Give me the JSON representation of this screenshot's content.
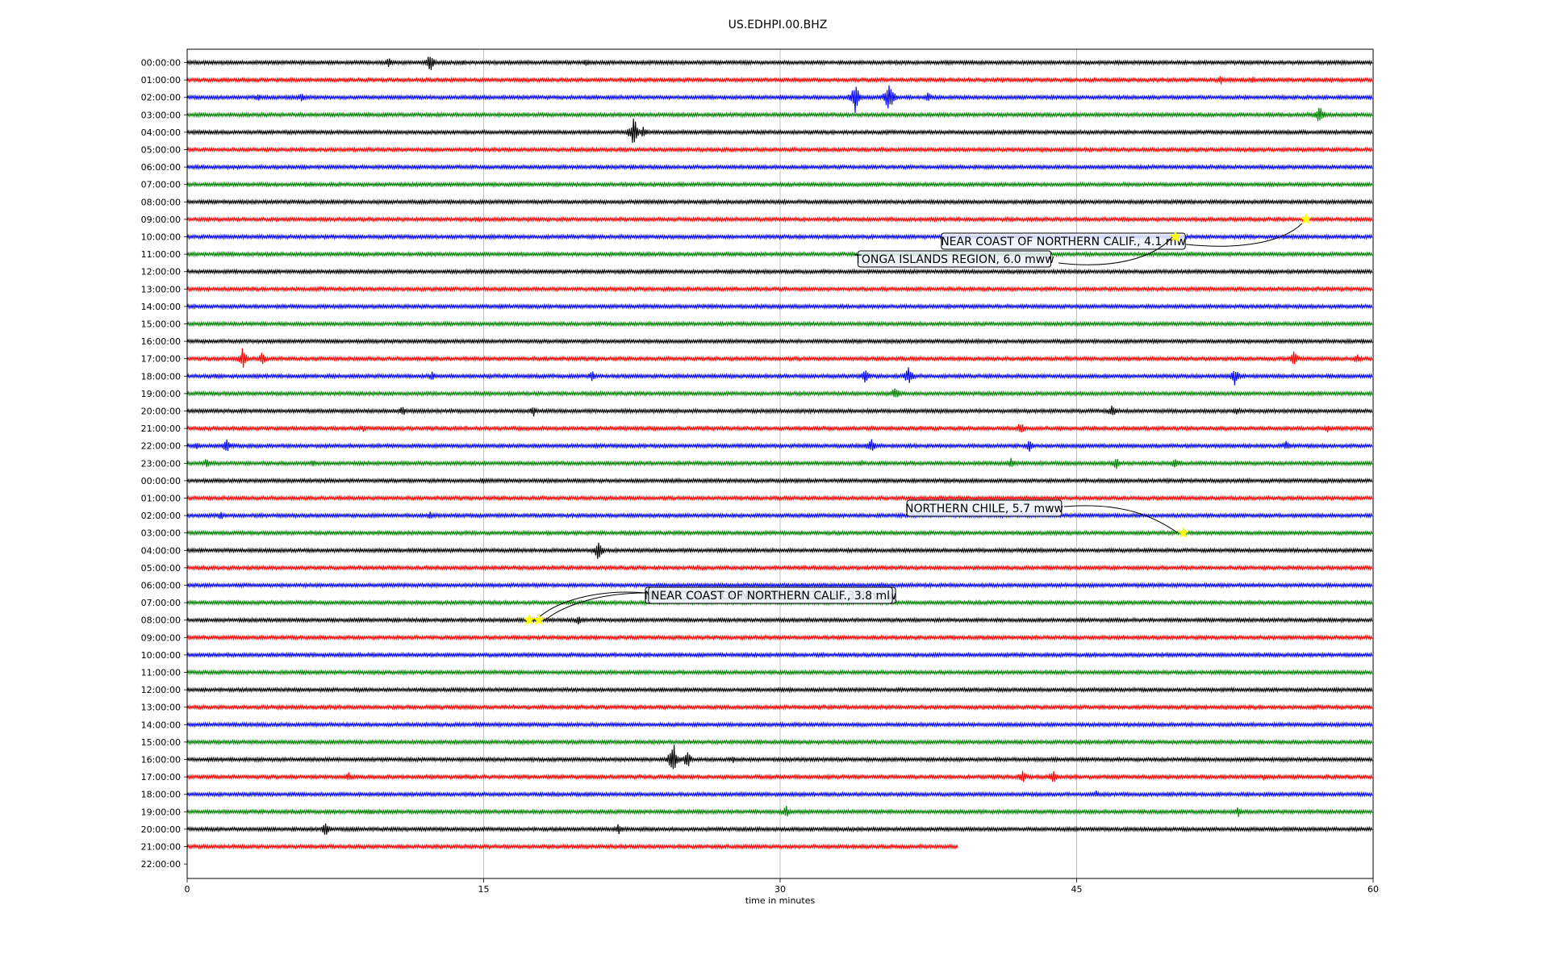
{
  "chart_data": {
    "type": "line",
    "title": "US.EDHPI.00.BHZ",
    "xlabel": "time in minutes",
    "ylabel": "",
    "xlim": [
      0,
      60
    ],
    "xticks": [
      "0",
      "15",
      "30",
      "45",
      "60"
    ],
    "xtick_values": [
      0,
      15,
      30,
      45,
      60
    ],
    "grid": "vertical",
    "trace_colors": [
      "#000000",
      "#ff0000",
      "#0000ff",
      "#008000"
    ],
    "row_labels": [
      "00:00:00",
      "01:00:00",
      "02:00:00",
      "03:00:00",
      "04:00:00",
      "05:00:00",
      "06:00:00",
      "07:00:00",
      "08:00:00",
      "09:00:00",
      "10:00:00",
      "11:00:00",
      "12:00:00",
      "13:00:00",
      "14:00:00",
      "15:00:00",
      "16:00:00",
      "17:00:00",
      "18:00:00",
      "19:00:00",
      "20:00:00",
      "21:00:00",
      "22:00:00",
      "23:00:00",
      "00:00:00",
      "01:00:00",
      "02:00:00",
      "03:00:00",
      "04:00:00",
      "05:00:00",
      "06:00:00",
      "07:00:00",
      "08:00:00",
      "09:00:00",
      "10:00:00",
      "11:00:00",
      "12:00:00",
      "13:00:00",
      "14:00:00",
      "15:00:00",
      "16:00:00",
      "17:00:00",
      "18:00:00",
      "19:00:00",
      "20:00:00",
      "21:00:00",
      "22:00:00"
    ],
    "last_trace_end_min": 39,
    "events": [
      {
        "row": 9,
        "minute": 56.6,
        "label": "NEAR COAST OF NORTHERN CALIF., 4.1 mw"
      },
      {
        "row": 10,
        "minute": 50.0,
        "label": "TONGA ISLANDS REGION, 6.0 mww"
      },
      {
        "row": 27,
        "minute": 50.4,
        "label": "NORTHERN CHILE, 5.7 mww"
      },
      {
        "row": 32,
        "minute": 17.3,
        "label": "NEAR COAST OF NORTHERN CALIF., 3.8 ml"
      },
      {
        "row": 32,
        "minute": 17.8,
        "label": "NEAR COAST OF NORTHERN CALIF., 3.8 mhw"
      }
    ],
    "bursts": [
      {
        "row": 0,
        "minute": 10.2,
        "amp": 6
      },
      {
        "row": 0,
        "minute": 12.3,
        "amp": 12
      },
      {
        "row": 0,
        "minute": 14.0,
        "amp": 5
      },
      {
        "row": 0,
        "minute": 20.2,
        "amp": 5
      },
      {
        "row": 1,
        "minute": 52.3,
        "amp": 6
      },
      {
        "row": 1,
        "minute": 53.9,
        "amp": 5
      },
      {
        "row": 2,
        "minute": 3.6,
        "amp": 5
      },
      {
        "row": 2,
        "minute": 5.8,
        "amp": 6
      },
      {
        "row": 2,
        "minute": 33.8,
        "amp": 20
      },
      {
        "row": 2,
        "minute": 35.5,
        "amp": 22
      },
      {
        "row": 2,
        "minute": 37.5,
        "amp": 7
      },
      {
        "row": 3,
        "minute": 57.3,
        "amp": 14
      },
      {
        "row": 4,
        "minute": 22.6,
        "amp": 20
      },
      {
        "row": 4,
        "minute": 23.1,
        "amp": 8
      },
      {
        "row": 5,
        "minute": 30.6,
        "amp": 3
      },
      {
        "row": 17,
        "minute": 2.8,
        "amp": 14
      },
      {
        "row": 17,
        "minute": 3.8,
        "amp": 10
      },
      {
        "row": 17,
        "minute": 56.0,
        "amp": 10
      },
      {
        "row": 17,
        "minute": 59.2,
        "amp": 8
      },
      {
        "row": 18,
        "minute": 1.5,
        "amp": 5
      },
      {
        "row": 18,
        "minute": 12.4,
        "amp": 6
      },
      {
        "row": 18,
        "minute": 20.5,
        "amp": 7
      },
      {
        "row": 18,
        "minute": 34.3,
        "amp": 10
      },
      {
        "row": 18,
        "minute": 36.5,
        "amp": 12
      },
      {
        "row": 18,
        "minute": 53.0,
        "amp": 12
      },
      {
        "row": 19,
        "minute": 35.8,
        "amp": 10
      },
      {
        "row": 20,
        "minute": 10.9,
        "amp": 7
      },
      {
        "row": 20,
        "minute": 17.5,
        "amp": 8
      },
      {
        "row": 20,
        "minute": 46.8,
        "amp": 9
      },
      {
        "row": 20,
        "minute": 53.1,
        "amp": 6
      },
      {
        "row": 21,
        "minute": 8.9,
        "amp": 5
      },
      {
        "row": 21,
        "minute": 42.2,
        "amp": 10
      },
      {
        "row": 21,
        "minute": 57.7,
        "amp": 6
      },
      {
        "row": 22,
        "minute": 0.5,
        "amp": 6
      },
      {
        "row": 22,
        "minute": 2.0,
        "amp": 10
      },
      {
        "row": 22,
        "minute": 34.6,
        "amp": 10
      },
      {
        "row": 22,
        "minute": 42.6,
        "amp": 8
      },
      {
        "row": 22,
        "minute": 55.6,
        "amp": 7
      },
      {
        "row": 23,
        "minute": 1.0,
        "amp": 7
      },
      {
        "row": 23,
        "minute": 6.4,
        "amp": 5
      },
      {
        "row": 23,
        "minute": 34.1,
        "amp": 5
      },
      {
        "row": 23,
        "minute": 41.7,
        "amp": 8
      },
      {
        "row": 23,
        "minute": 47.0,
        "amp": 8
      },
      {
        "row": 23,
        "minute": 50.0,
        "amp": 8
      },
      {
        "row": 24,
        "minute": 15.0,
        "amp": 5
      },
      {
        "row": 26,
        "minute": 1.7,
        "amp": 6
      },
      {
        "row": 26,
        "minute": 12.3,
        "amp": 5
      },
      {
        "row": 28,
        "minute": 20.8,
        "amp": 14
      },
      {
        "row": 32,
        "minute": 19.8,
        "amp": 7
      },
      {
        "row": 40,
        "minute": 24.6,
        "amp": 22
      },
      {
        "row": 40,
        "minute": 25.3,
        "amp": 12
      },
      {
        "row": 40,
        "minute": 27.6,
        "amp": 5
      },
      {
        "row": 41,
        "minute": 8.2,
        "amp": 7
      },
      {
        "row": 41,
        "minute": 42.3,
        "amp": 10
      },
      {
        "row": 41,
        "minute": 43.8,
        "amp": 9
      },
      {
        "row": 41,
        "minute": 54.5,
        "amp": 5
      },
      {
        "row": 42,
        "minute": 46.0,
        "amp": 5
      },
      {
        "row": 43,
        "minute": 9.3,
        "amp": 6
      },
      {
        "row": 43,
        "minute": 30.3,
        "amp": 8
      },
      {
        "row": 43,
        "minute": 53.2,
        "amp": 7
      },
      {
        "row": 44,
        "minute": 7.0,
        "amp": 9
      },
      {
        "row": 44,
        "minute": 21.8,
        "amp": 8
      }
    ]
  }
}
